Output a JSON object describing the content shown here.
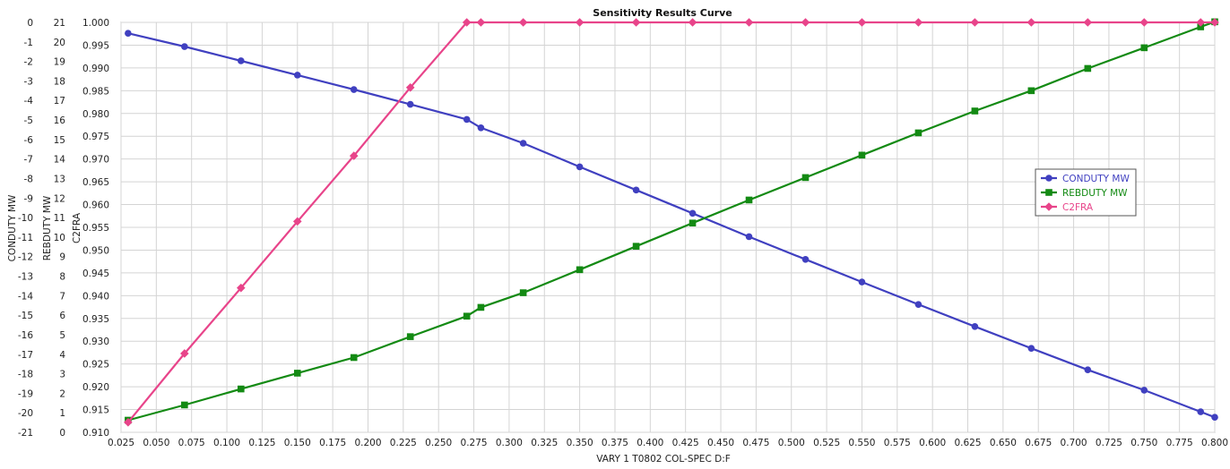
{
  "chart_data": {
    "type": "line",
    "title": "Sensitivity Results Curve",
    "xlabel": "VARY  1 T0802 COL-SPEC D:F",
    "xlim": [
      0.025,
      0.8
    ],
    "xticks": [
      "0.025",
      "0.050",
      "0.075",
      "0.100",
      "0.125",
      "0.150",
      "0.175",
      "0.200",
      "0.225",
      "0.250",
      "0.275",
      "0.300",
      "0.325",
      "0.350",
      "0.375",
      "0.400",
      "0.425",
      "0.450",
      "0.475",
      "0.500",
      "0.525",
      "0.550",
      "0.575",
      "0.600",
      "0.625",
      "0.650",
      "0.675",
      "0.700",
      "0.725",
      "0.750",
      "0.775",
      "0.800"
    ],
    "grid": true,
    "legend_position": "right",
    "axes": [
      {
        "id": "cond",
        "label": "CONDUTY MW",
        "lim": [
          -21,
          0
        ],
        "ticks": [
          "0",
          "-1",
          "-2",
          "-3",
          "-4",
          "-5",
          "-6",
          "-7",
          "-8",
          "-9",
          "-10",
          "-11",
          "-12",
          "-13",
          "-14",
          "-15",
          "-16",
          "-17",
          "-18",
          "-19",
          "-20",
          "-21"
        ]
      },
      {
        "id": "reb",
        "label": "REBDUTY MW",
        "lim": [
          0,
          21
        ],
        "ticks": [
          "21",
          "20",
          "19",
          "18",
          "17",
          "16",
          "15",
          "14",
          "13",
          "12",
          "11",
          "10",
          "9",
          "8",
          "7",
          "6",
          "5",
          "4",
          "3",
          "2",
          "1",
          "0"
        ]
      },
      {
        "id": "frac",
        "label": "C2FRA",
        "lim": [
          0.91,
          1.0
        ],
        "ticks": [
          "1.000",
          "0.995",
          "0.990",
          "0.985",
          "0.980",
          "0.975",
          "0.970",
          "0.965",
          "0.960",
          "0.955",
          "0.950",
          "0.945",
          "0.940",
          "0.935",
          "0.930",
          "0.925",
          "0.920",
          "0.915",
          "0.910"
        ]
      }
    ],
    "series": [
      {
        "name": "CONDUTY MW",
        "axis": "cond",
        "color": "#4040c0",
        "marker": "circle",
        "x": [
          0.03,
          0.07,
          0.11,
          0.15,
          0.19,
          0.23,
          0.27,
          0.28,
          0.31,
          0.35,
          0.39,
          0.43,
          0.47,
          0.51,
          0.55,
          0.59,
          0.63,
          0.67,
          0.71,
          0.75,
          0.79,
          0.8
        ],
        "y": [
          -0.56,
          -1.24,
          -1.97,
          -2.7,
          -3.44,
          -4.2,
          -4.97,
          -5.4,
          -6.19,
          -7.4,
          -8.59,
          -9.78,
          -10.98,
          -12.14,
          -13.3,
          -14.45,
          -15.58,
          -16.7,
          -17.8,
          -18.84,
          -19.95,
          -20.23
        ]
      },
      {
        "name": "REBDUTY MW",
        "axis": "reb",
        "color": "#138a13",
        "marker": "square",
        "x": [
          0.03,
          0.07,
          0.11,
          0.15,
          0.19,
          0.23,
          0.27,
          0.28,
          0.31,
          0.35,
          0.39,
          0.43,
          0.47,
          0.51,
          0.55,
          0.59,
          0.63,
          0.67,
          0.71,
          0.75,
          0.79,
          0.8
        ],
        "y": [
          0.62,
          1.4,
          2.22,
          3.03,
          3.83,
          4.9,
          5.95,
          6.4,
          7.15,
          8.33,
          9.53,
          10.72,
          11.9,
          13.05,
          14.2,
          15.34,
          16.46,
          17.5,
          18.64,
          19.7,
          20.77,
          21.03
        ]
      },
      {
        "name": "C2FRA",
        "axis": "frac",
        "color": "#e8448a",
        "marker": "diamond",
        "x": [
          0.03,
          0.07,
          0.11,
          0.15,
          0.19,
          0.23,
          0.27,
          0.28,
          0.31,
          0.35,
          0.39,
          0.43,
          0.47,
          0.51,
          0.55,
          0.59,
          0.63,
          0.67,
          0.71,
          0.75,
          0.79,
          0.8
        ],
        "y": [
          0.9122,
          0.9273,
          0.9417,
          0.9563,
          0.9707,
          0.9857,
          1.0,
          1.0,
          1.0,
          1.0,
          1.0,
          1.0,
          1.0,
          1.0,
          1.0,
          1.0,
          1.0,
          1.0,
          1.0,
          1.0,
          1.0,
          1.0
        ]
      }
    ]
  }
}
